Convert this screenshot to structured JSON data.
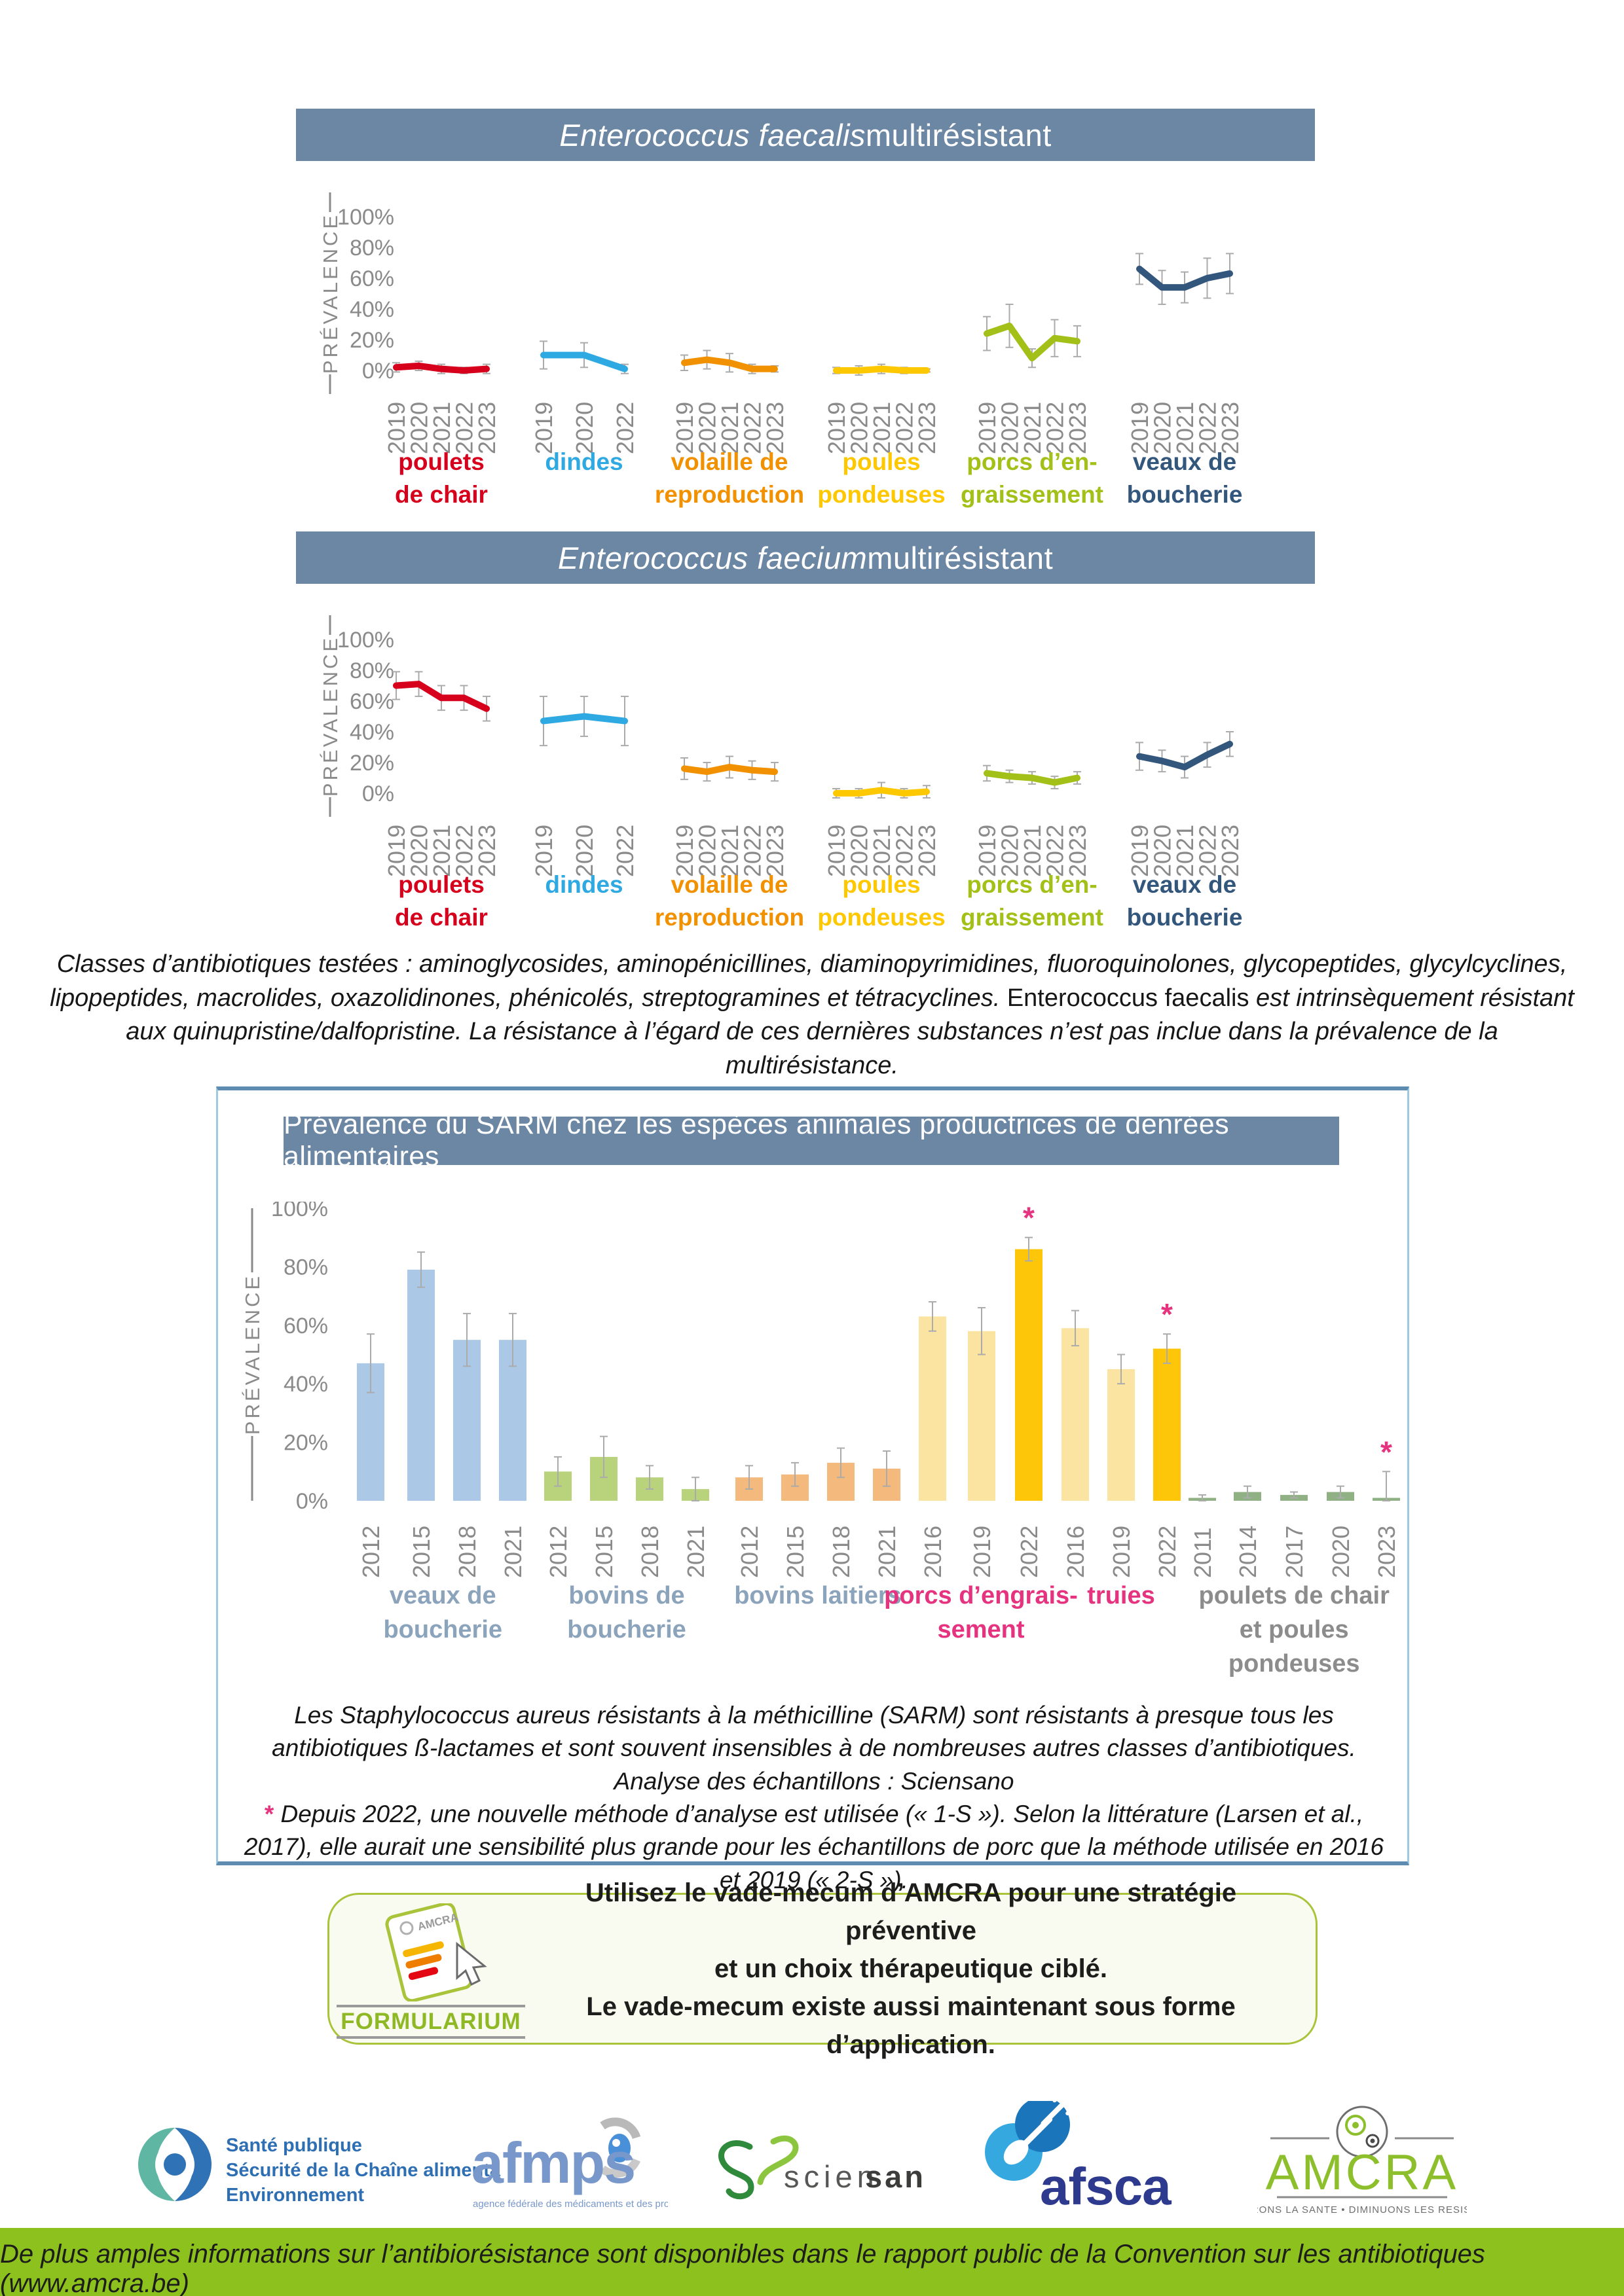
{
  "colors": {
    "header_bar": "#6b87a4",
    "footer_bar": "#8dc21e",
    "asterisk": "#e5337f",
    "axis_text": "#8a8a8a",
    "error_bar": "#ababab"
  },
  "chart_data": [
    {
      "id": "faecalis",
      "type": "line",
      "title_italic": "Enterococcus faecalis",
      "title_rest": " multirésistant",
      "ylabel": "PRÉVALENCE",
      "ylim": [
        0,
        100
      ],
      "yticks": [
        "100%",
        "80%",
        "60%",
        "40%",
        "20%",
        "0%"
      ],
      "grid": false,
      "groups": [
        {
          "label": [
            "poulets",
            "de chair"
          ],
          "color": "#d6001c",
          "years": [
            "2019",
            "2020",
            "2021",
            "2022",
            "2023"
          ],
          "values": [
            2,
            3,
            1,
            0,
            1
          ],
          "errors": [
            3,
            3,
            3,
            2,
            3
          ]
        },
        {
          "label": [
            "dindes"
          ],
          "color": "#2fa9e1",
          "years": [
            "2019",
            "2020",
            "2022"
          ],
          "values": [
            10,
            10,
            1
          ],
          "errors": [
            9,
            8,
            3
          ]
        },
        {
          "label": [
            "volaille de",
            "reproduction"
          ],
          "color": "#f29100",
          "years": [
            "2019",
            "2020",
            "2021",
            "2022",
            "2023"
          ],
          "values": [
            5,
            7,
            5,
            1,
            1
          ],
          "errors": [
            5,
            6,
            6,
            3,
            2
          ]
        },
        {
          "label": [
            "poules",
            "pondeuses"
          ],
          "color": "#fdc800",
          "years": [
            "2019",
            "2020",
            "2021",
            "2022",
            "2023"
          ],
          "values": [
            0,
            0,
            1,
            0,
            0
          ],
          "errors": [
            2,
            3,
            3,
            2,
            1
          ]
        },
        {
          "label": [
            "porcs d’en-",
            "graissement"
          ],
          "color": "#a2c017",
          "years": [
            "2019",
            "2020",
            "2021",
            "2022",
            "2023"
          ],
          "values": [
            24,
            29,
            8,
            21,
            19
          ],
          "errors": [
            11,
            14,
            6,
            12,
            10
          ]
        },
        {
          "label": [
            "veaux de",
            "boucherie"
          ],
          "color": "#33567d",
          "years": [
            "2019",
            "2020",
            "2021",
            "2022",
            "2023"
          ],
          "values": [
            66,
            54,
            54,
            60,
            63
          ],
          "errors": [
            10,
            11,
            10,
            13,
            13
          ]
        }
      ]
    },
    {
      "id": "faecium",
      "type": "line",
      "title_italic": "Enterococcus faecium",
      "title_rest": " multirésistant",
      "ylabel": "PRÉVALENCE",
      "ylim": [
        0,
        100
      ],
      "yticks": [
        "100%",
        "80%",
        "60%",
        "40%",
        "20%",
        "0%"
      ],
      "grid": false,
      "groups": [
        {
          "label": [
            "poulets",
            "de chair"
          ],
          "color": "#d6001c",
          "years": [
            "2019",
            "2020",
            "2021",
            "2022",
            "2023"
          ],
          "values": [
            70,
            71,
            62,
            62,
            55
          ],
          "errors": [
            9,
            8,
            8,
            8,
            8
          ]
        },
        {
          "label": [
            "dindes"
          ],
          "color": "#2fa9e1",
          "years": [
            "2019",
            "2020",
            "2022"
          ],
          "values": [
            47,
            50,
            47
          ],
          "errors": [
            16,
            13,
            16
          ]
        },
        {
          "label": [
            "volaille de",
            "reproduction"
          ],
          "color": "#f29100",
          "years": [
            "2019",
            "2020",
            "2021",
            "2022",
            "2023"
          ],
          "values": [
            16,
            14,
            17,
            15,
            14
          ],
          "errors": [
            7,
            6,
            7,
            6,
            6
          ]
        },
        {
          "label": [
            "poules",
            "pondeuses"
          ],
          "color": "#fdc800",
          "years": [
            "2019",
            "2020",
            "2021",
            "2022",
            "2023"
          ],
          "values": [
            0,
            0,
            2,
            0,
            1
          ],
          "errors": [
            3,
            3,
            5,
            3,
            4
          ]
        },
        {
          "label": [
            "porcs d’en-",
            "graissement"
          ],
          "color": "#a2c017",
          "years": [
            "2019",
            "2020",
            "2021",
            "2022",
            "2023"
          ],
          "values": [
            13,
            11,
            10,
            7,
            10
          ],
          "errors": [
            5,
            4,
            4,
            4,
            4
          ]
        },
        {
          "label": [
            "veaux de",
            "boucherie"
          ],
          "color": "#33567d",
          "years": [
            "2019",
            "2020",
            "2021",
            "2022",
            "2023"
          ],
          "values": [
            24,
            21,
            17,
            25,
            32
          ],
          "errors": [
            9,
            7,
            7,
            8,
            8
          ]
        }
      ]
    },
    {
      "id": "sarm",
      "type": "bar",
      "title": "Prévalence du SARM chez les espèces animales productrices de denrées alimentaires",
      "ylabel": "PRÉVALENCE",
      "ylim": [
        0,
        100
      ],
      "yticks": [
        "100%",
        "80%",
        "60%",
        "40%",
        "20%",
        "0%"
      ],
      "grid": false,
      "gold_color": "#fdc608",
      "asterisk_color": "#e5337f",
      "groups": [
        {
          "label": [
            "veaux de",
            "boucherie"
          ],
          "label_color": "#8ba3bb",
          "bar_color": "#abc9e7",
          "years": [
            "2012",
            "2015",
            "2018",
            "2021"
          ],
          "values": [
            47,
            79,
            55,
            55
          ],
          "errors": [
            10,
            6,
            9,
            9
          ],
          "gold_index": -1,
          "asterisk_index": -1
        },
        {
          "label": [
            "bovins de",
            "boucherie"
          ],
          "label_color": "#8ba3bb",
          "bar_color": "#b9d37c",
          "years": [
            "2012",
            "2015",
            "2018",
            "2021"
          ],
          "values": [
            10,
            15,
            8,
            4
          ],
          "errors": [
            5,
            7,
            4,
            4
          ],
          "gold_index": -1,
          "asterisk_index": -1
        },
        {
          "label": [
            "bovins laitiers"
          ],
          "label_color": "#8ba3bb",
          "bar_color": "#f4ba7d",
          "years": [
            "2012",
            "2015",
            "2018",
            "2021"
          ],
          "values": [
            8,
            9,
            13,
            11
          ],
          "errors": [
            4,
            4,
            5,
            6
          ],
          "gold_index": -1,
          "asterisk_index": -1
        },
        {
          "label": [
            "porcs d’engrais-",
            "sement"
          ],
          "label_color": "#e5337f",
          "bar_color": "#fbe3a2",
          "years": [
            "2016",
            "2019",
            "2022"
          ],
          "values": [
            63,
            58,
            86
          ],
          "errors": [
            5,
            8,
            4
          ],
          "gold_index": 2,
          "asterisk_index": 2
        },
        {
          "label": [
            "truies"
          ],
          "label_color": "#e5337f",
          "bar_color": "#fbe3a2",
          "years": [
            "2016",
            "2019",
            "2022"
          ],
          "values": [
            59,
            45,
            52
          ],
          "errors": [
            6,
            5,
            5
          ],
          "gold_index": 2,
          "asterisk_index": 2
        },
        {
          "label": [
            "poulets de chair",
            "et poules",
            "pondeuses"
          ],
          "label_color": "#8c8c8c",
          "bar_color": "#90b183",
          "years": [
            "2011",
            "2014",
            "2017",
            "2020",
            "2023"
          ],
          "values": [
            1,
            3,
            2,
            3,
            1
          ],
          "errors": [
            1,
            2,
            1,
            2,
            9
          ],
          "gold_index": -1,
          "asterisk_index": 4
        }
      ]
    }
  ],
  "mid_note": {
    "part1_italic": "Classes d’antibiotiques testées : aminoglycosides, aminopénicillines, diaminopyrimidines, fluoroquinolones, glycopeptides, glycylcyclines, lipopeptides, macrolides, oxazolidinones, phénicolés, streptogramines et tétracyclines. ",
    "part2_regular": "Enterococcus faecalis",
    "part3_italic": " est intrinsèquement résistant aux quinupristine/dalfopristine. La résistance à l’égard de ces dernières substances n’est pas inclue dans la prévalence de la multirésistance.",
    "analysis_line": "Analyse des échantillons : Sciensano"
  },
  "sarm_note": {
    "line1": "Les Staphylococcus aureus résistants à la méthicilline (SARM) sont résistants à presque tous les antibiotiques ß-lactames et sont souvent insensibles à de nombreuses autres classes d’antibiotiques.",
    "line2": "Analyse des échantillons : Sciensano",
    "star": "* ",
    "line3": "Depuis 2022, une nouvelle méthode d’analyse est utilisée (« 1-S »). Selon la littérature (Larsen et al., 2017), elle aurait une sensibilité plus grande pour les échantillons de porc que la méthode utilisée en 2016 et 2019 (« 2-S »).",
    "line4": "."
  },
  "formularium": {
    "label": "FORMULARIUM",
    "lines": [
      "Utilisez le vade-mecum d’AMCRA pour une stratégie préventive",
      "et un choix thérapeutique ciblé.",
      "Le vade-mecum existe aussi maintenant sous forme d’application."
    ]
  },
  "logos": {
    "sante_publique": {
      "lines": [
        "Santé publique",
        "Sécurité de la Chaîne alimentaire",
        "Environnement"
      ]
    },
    "afmps": {
      "name": "afmps",
      "subtitle": "agence fédérale des médicaments et des produits de santé"
    },
    "sciensano": {
      "part1": "scien",
      "part2": "sano"
    },
    "afsca": {
      "name": "afsca"
    },
    "amcra": {
      "name": "AMCRA",
      "tagline": "AMELIORONS LA SANTE • DIMINUONS LES RESISTANCES"
    }
  },
  "footer": {
    "text": "De plus amples informations sur l’antibiorésistance sont disponibles dans le rapport public de la Convention sur les antibiotiques (www.amcra.be)"
  }
}
